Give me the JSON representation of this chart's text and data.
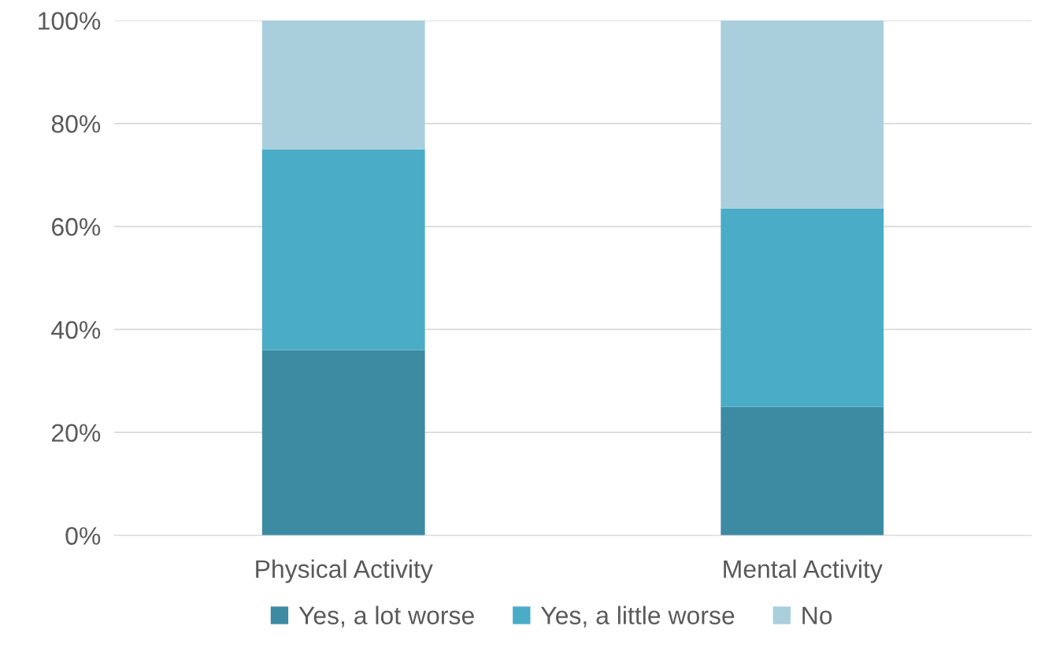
{
  "chart_data": {
    "type": "bar",
    "stacked": true,
    "categories": [
      "Physical Activity",
      "Mental Activity"
    ],
    "series": [
      {
        "name": "Yes, a lot worse",
        "color": "#3d8ba3",
        "values": [
          36,
          25
        ]
      },
      {
        "name": "Yes, a little worse",
        "color": "#4aacc6",
        "values": [
          39,
          38.5
        ]
      },
      {
        "name": "No",
        "color": "#a9cfdc",
        "values": [
          25,
          36.5
        ]
      }
    ],
    "ylim": [
      0,
      100
    ],
    "yticks": [
      {
        "value": 0,
        "label": "0%"
      },
      {
        "value": 20,
        "label": "20%"
      },
      {
        "value": 40,
        "label": "40%"
      },
      {
        "value": 60,
        "label": "60%"
      },
      {
        "value": 80,
        "label": "80%"
      },
      {
        "value": 100,
        "label": "100%"
      }
    ],
    "grid": "y",
    "legend": "bottom"
  }
}
